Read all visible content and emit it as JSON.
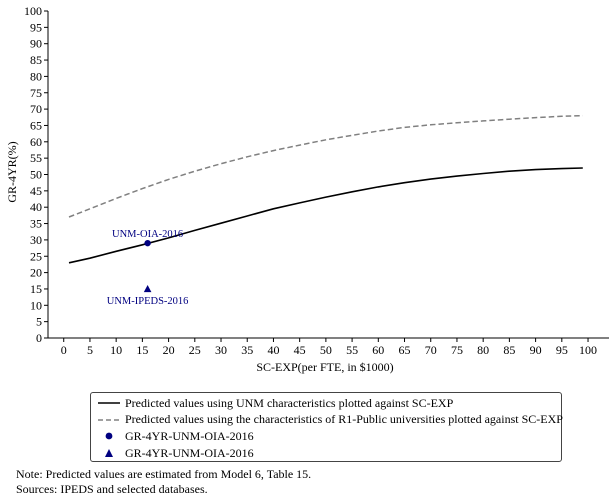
{
  "chart_data": {
    "type": "line",
    "xlabel": "SC-EXP(per FTE, in $1000)",
    "ylabel": "GR-4YR(%)",
    "xlim": [
      -3,
      104
    ],
    "ylim": [
      0,
      100
    ],
    "xticks": [
      0,
      5,
      10,
      15,
      20,
      25,
      30,
      35,
      40,
      45,
      50,
      55,
      60,
      65,
      70,
      75,
      80,
      85,
      90,
      95,
      100
    ],
    "yticks": [
      0,
      5,
      10,
      15,
      20,
      25,
      30,
      35,
      40,
      45,
      50,
      55,
      60,
      65,
      70,
      75,
      80,
      85,
      90,
      95,
      100
    ],
    "grid": false,
    "legend_position": "bottom",
    "series": [
      {
        "name": "Predicted values using UNM characteristics plotted against SC-EXP",
        "kind": "line",
        "style": "solid",
        "color": "#000000",
        "x": [
          1,
          5,
          10,
          15,
          20,
          25,
          30,
          35,
          40,
          45,
          50,
          55,
          60,
          65,
          70,
          75,
          80,
          85,
          90,
          95,
          99
        ],
        "y": [
          23.0,
          24.4,
          26.5,
          28.5,
          30.6,
          32.9,
          35.1,
          37.3,
          39.5,
          41.3,
          43.1,
          44.7,
          46.2,
          47.5,
          48.6,
          49.5,
          50.3,
          51.0,
          51.5,
          51.8,
          52.0
        ]
      },
      {
        "name": "Predicted values using the characteristics of R1-Public universities plotted against SC-EXP",
        "kind": "line",
        "style": "dashed",
        "color": "#808080",
        "x": [
          1,
          5,
          10,
          15,
          20,
          25,
          30,
          35,
          40,
          45,
          50,
          55,
          60,
          65,
          70,
          75,
          80,
          85,
          90,
          95,
          99
        ],
        "y": [
          37.0,
          39.5,
          42.7,
          45.7,
          48.5,
          51.0,
          53.3,
          55.4,
          57.3,
          59.0,
          60.6,
          62.0,
          63.3,
          64.4,
          65.2,
          65.8,
          66.4,
          66.9,
          67.4,
          67.8,
          68.0
        ]
      },
      {
        "name": "GR-4YR-UNM-OIA-2016",
        "kind": "point",
        "marker": "circle",
        "color": "#000080",
        "x": [
          16
        ],
        "y": [
          29
        ],
        "annotation": "UNM-OIA-2016"
      },
      {
        "name": "GR-4YR-UNM-OIA-2016",
        "kind": "point",
        "marker": "triangle",
        "color": "#000080",
        "x": [
          16
        ],
        "y": [
          15
        ],
        "annotation": "UNM-IPEDS-2016"
      }
    ]
  },
  "footnote": {
    "note": "Note: Predicted values are estimated from Model 6, Table 15.",
    "sources": "Sources: IPEDS and selected databases."
  }
}
